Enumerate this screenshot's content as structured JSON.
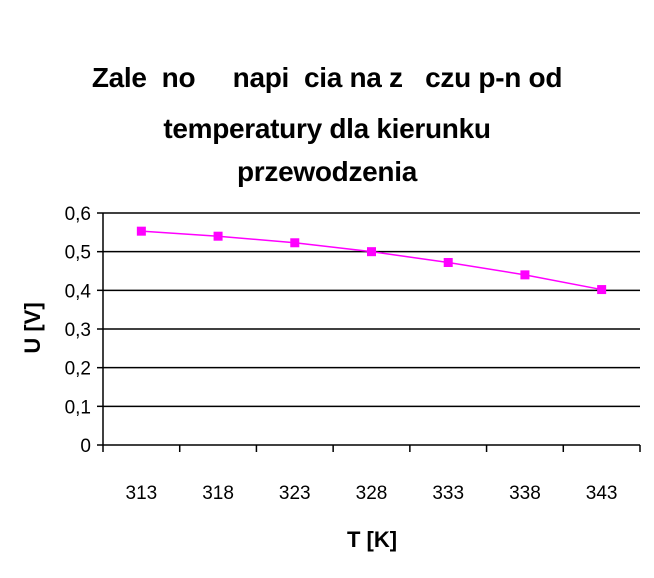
{
  "chart_data": {
    "type": "line",
    "title_lines": [
      "Zale  no     napi  cia na z   czu p-n od",
      "temperatury dla kierunku",
      "przewodzenia"
    ],
    "xlabel": "T [K]",
    "ylabel": "U [V]",
    "categories": [
      "313",
      "318",
      "323",
      "328",
      "333",
      "338",
      "343"
    ],
    "y_ticks": [
      "0",
      "0,1",
      "0,2",
      "0,3",
      "0,4",
      "0,5",
      "0,6"
    ],
    "ylim": [
      0,
      0.6
    ],
    "series": [
      {
        "values": [
          0.553,
          0.54,
          0.523,
          0.5,
          0.472,
          0.44,
          0.402
        ]
      }
    ],
    "grid": "horizontal",
    "legend": "none",
    "colors": {
      "series": "#ff00ff",
      "axis": "#000000",
      "grid": "#000000"
    }
  }
}
